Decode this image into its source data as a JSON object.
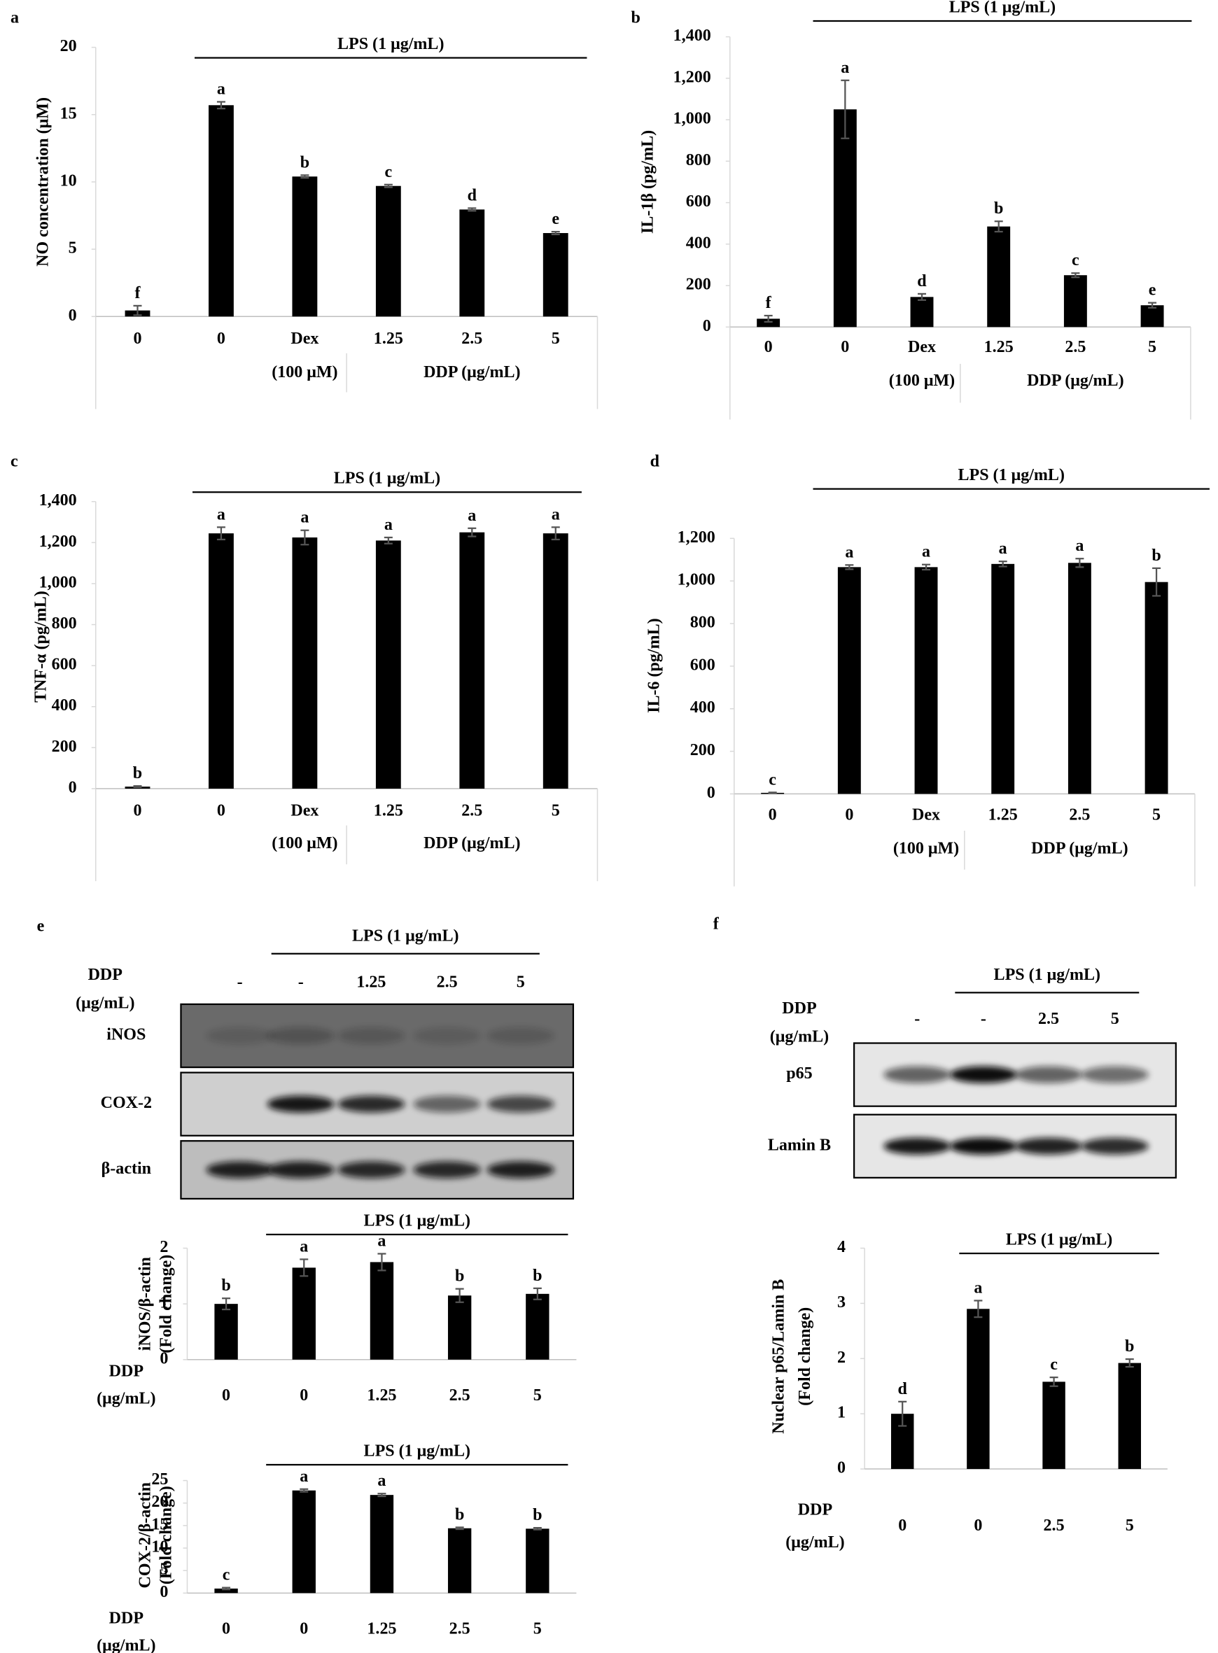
{
  "chart_data": [
    {
      "type": "bar",
      "panel": "a",
      "ylabel": "NO concentration (μM)",
      "bracket": "LPS (1 μg/mL)",
      "categories": [
        "0",
        "0",
        "Dex",
        "1.25",
        "2.5",
        "5"
      ],
      "group_labels": [
        "(100 μM)",
        "DDP (μg/mL)"
      ],
      "values": [
        0.45,
        15.7,
        10.4,
        9.7,
        7.95,
        6.2
      ],
      "errors": [
        0.35,
        0.25,
        0.1,
        0.1,
        0.1,
        0.1
      ],
      "annotations": [
        "f",
        "a",
        "b",
        "c",
        "d",
        "e"
      ],
      "color": "#000000",
      "ylim": [
        0,
        20
      ],
      "yticks": [
        0,
        5,
        10,
        15,
        20
      ]
    },
    {
      "type": "bar",
      "panel": "b",
      "ylabel": "IL-1β (pg/mL)",
      "bracket": "LPS (1 μg/mL)",
      "categories": [
        "0",
        "0",
        "Dex",
        "1.25",
        "2.5",
        "5"
      ],
      "group_labels": [
        "(100 μM)",
        "DDP (μg/mL)"
      ],
      "values": [
        40,
        1050,
        145,
        485,
        250,
        105
      ],
      "errors": [
        15,
        140,
        15,
        25,
        10,
        12
      ],
      "annotations": [
        "f",
        "a",
        "d",
        "b",
        "c",
        "e"
      ],
      "color": "#000000",
      "ylim": [
        0,
        1400
      ],
      "yticks": [
        0,
        200,
        400,
        600,
        800,
        {
          "value": 1000,
          "label": "1,000"
        },
        {
          "value": 1200,
          "label": "1,200"
        },
        {
          "value": 1400,
          "label": "1,400"
        }
      ]
    },
    {
      "type": "bar",
      "panel": "c",
      "ylabel": "TNF-α (pg/mL)",
      "bracket": "LPS (1 μg/mL)",
      "categories": [
        "0",
        "0",
        "Dex",
        "1.25",
        "2.5",
        "5"
      ],
      "group_labels": [
        "(100 μM)",
        "DDP (μg/mL)"
      ],
      "values": [
        10,
        1245,
        1225,
        1210,
        1250,
        1245
      ],
      "errors": [
        3,
        30,
        35,
        15,
        20,
        30
      ],
      "annotations": [
        "b",
        "a",
        "a",
        "a",
        "a",
        "a"
      ],
      "color": "#000000",
      "ylim": [
        0,
        1400
      ],
      "yticks": [
        0,
        200,
        400,
        600,
        800,
        {
          "value": 1000,
          "label": "1,000"
        },
        {
          "value": 1200,
          "label": "1,200"
        },
        {
          "value": 1400,
          "label": "1,400"
        }
      ]
    },
    {
      "type": "bar",
      "panel": "d",
      "ylabel": "IL-6 (pg/mL)",
      "bracket": "LPS (1 μg/mL)",
      "categories": [
        "0",
        "0",
        "Dex",
        "1.25",
        "2.5",
        "5"
      ],
      "group_labels": [
        "(100 μM)",
        "DDP (μg/mL)"
      ],
      "values": [
        5,
        1065,
        1065,
        1080,
        1085,
        995
      ],
      "errors": [
        2,
        10,
        12,
        12,
        20,
        65
      ],
      "annotations": [
        "c",
        "a",
        "a",
        "a",
        "a",
        "b"
      ],
      "color": "#000000",
      "ylim": [
        0,
        1200
      ],
      "yticks": [
        0,
        200,
        400,
        600,
        800,
        {
          "value": 1000,
          "label": "1,000"
        },
        {
          "value": 1200,
          "label": "1,200"
        }
      ]
    },
    {
      "type": "bar",
      "ylabel": [
        "iNOS/β-actin",
        "(Fold change)"
      ],
      "bracket": "LPS (1 μg/mL)",
      "xlabel": [
        "DDP",
        "(μg/mL)"
      ],
      "categories": [
        "0",
        "0",
        "1.25",
        "2.5",
        "5"
      ],
      "values": [
        1.0,
        1.65,
        1.75,
        1.15,
        1.18
      ],
      "errors": [
        0.1,
        0.15,
        0.15,
        0.12,
        0.1
      ],
      "annotations": [
        "b",
        "a",
        "a",
        "b",
        "b"
      ],
      "color": "#000000",
      "ylim": [
        0,
        2
      ],
      "yticks": [
        0,
        1,
        2
      ]
    },
    {
      "type": "bar",
      "ylabel": [
        "COX-2/β-actin",
        "(Fold change)"
      ],
      "bracket": "LPS (1 μg/mL)",
      "xlabel": [
        "DDP",
        "(μg/mL)"
      ],
      "categories": [
        "0",
        "0",
        "1.25",
        "2.5",
        "5"
      ],
      "values": [
        1.0,
        22.8,
        21.8,
        14.4,
        14.3
      ],
      "errors": [
        0.2,
        0.3,
        0.3,
        0.2,
        0.2
      ],
      "annotations": [
        "c",
        "a",
        "a",
        "b",
        "b"
      ],
      "color": "#000000",
      "ylim": [
        0,
        25
      ],
      "yticks": [
        0,
        5,
        10,
        15,
        20,
        25
      ]
    },
    {
      "type": "bar",
      "ylabel": [
        "Nuclear p65/Lamin B",
        "(Fold change)"
      ],
      "bracket": "LPS (1 μg/mL)",
      "xlabel": [
        "DDP",
        "(μg/mL)"
      ],
      "categories": [
        "0",
        "0",
        "2.5",
        "5"
      ],
      "values": [
        1.0,
        2.9,
        1.58,
        1.92
      ],
      "errors": [
        0.22,
        0.15,
        0.08,
        0.07
      ],
      "annotations": [
        "d",
        "a",
        "c",
        "b"
      ],
      "color": "#000000",
      "ylim": [
        0,
        4
      ],
      "yticks": [
        0,
        1,
        2,
        3,
        4
      ]
    }
  ],
  "blots": [
    {
      "panel": "e",
      "bracket": "LPS (1 μg/mL)",
      "treatment": [
        "DDP",
        "(μg/mL)"
      ],
      "lanes": [
        "-",
        "-",
        "1.25",
        "2.5",
        "5"
      ],
      "rows": [
        "iNOS",
        "COX-2",
        "β-actin"
      ]
    },
    {
      "panel": "f",
      "bracket": "LPS (1 μg/mL)",
      "treatment": [
        "DDP",
        "(μg/mL)"
      ],
      "lanes": [
        "-",
        "-",
        "2.5",
        "5"
      ],
      "rows": [
        "p65",
        "Lamin B"
      ]
    }
  ]
}
